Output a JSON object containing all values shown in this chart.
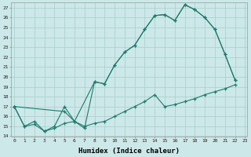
{
  "xlabel": "Humidex (Indice chaleur)",
  "bg_color": "#cce8e8",
  "line_color": "#1e7b6a",
  "grid_color": "#aacccc",
  "line1_x": [
    0,
    1,
    2,
    3,
    4,
    5,
    6,
    7,
    8,
    9,
    10,
    11,
    12,
    13,
    14,
    15,
    16,
    17,
    18,
    19,
    20,
    21,
    22
  ],
  "line1_y": [
    17,
    15,
    15.5,
    14.5,
    15.0,
    17.0,
    15.5,
    14.8,
    19.5,
    19.3,
    21.2,
    22.5,
    23.2,
    24.8,
    26.2,
    26.3,
    25.7,
    27.3,
    26.8,
    26.0,
    24.8,
    22.3,
    19.7
  ],
  "line2_x": [
    0,
    1,
    2,
    3,
    4,
    5,
    6,
    7,
    8,
    9,
    10,
    11,
    12,
    13,
    14,
    15,
    16,
    17,
    18,
    19,
    20,
    21,
    22
  ],
  "line2_y": [
    17.0,
    15.0,
    15.2,
    14.5,
    14.8,
    15.3,
    15.5,
    15.0,
    15.3,
    15.5,
    16.0,
    16.5,
    17.0,
    17.5,
    18.2,
    17.0,
    17.2,
    17.5,
    17.8,
    18.2,
    18.5,
    18.8,
    19.2
  ],
  "line3_x": [
    0,
    5,
    6,
    8,
    9,
    10,
    11,
    12,
    13,
    14,
    15,
    16,
    17,
    18,
    19,
    20,
    21,
    22
  ],
  "line3_y": [
    17.0,
    16.5,
    15.5,
    19.5,
    19.3,
    21.2,
    22.5,
    23.2,
    24.8,
    26.2,
    26.3,
    25.7,
    27.3,
    26.8,
    26.0,
    24.8,
    22.3,
    19.7
  ],
  "xlim": [
    -0.3,
    23.2
  ],
  "ylim": [
    14,
    27.5
  ],
  "xticks": [
    0,
    1,
    2,
    3,
    4,
    5,
    6,
    7,
    8,
    9,
    10,
    11,
    12,
    13,
    14,
    15,
    16,
    17,
    18,
    19,
    20,
    21,
    22,
    23
  ],
  "yticks": [
    14,
    15,
    16,
    17,
    18,
    19,
    20,
    21,
    22,
    23,
    24,
    25,
    26,
    27
  ]
}
